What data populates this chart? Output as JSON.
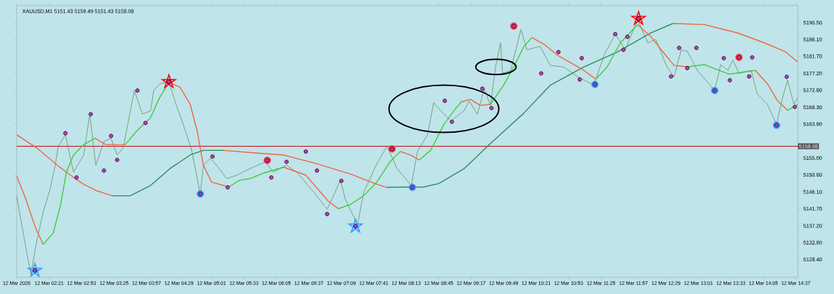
{
  "chart_data": {
    "type": "line",
    "title": "XAUUSD,M1  5151.43 5159.49 5151.43 5158.08",
    "xlim": [
      "2026-03-12T01:49",
      "2026-03-12T14:39"
    ],
    "ylim": [
      5123.7,
      5195.0
    ],
    "xticks": [
      {
        "value": "2026-03-12T01:49",
        "label": "12 Mar 2026"
      },
      {
        "value": "2026-03-12T02:21",
        "label": "12 Mar 02:21"
      },
      {
        "value": "2026-03-12T02:53",
        "label": "12 Mar 02:53"
      },
      {
        "value": "2026-03-12T03:25",
        "label": "12 Mar 03:25"
      },
      {
        "value": "2026-03-12T03:57",
        "label": "12 Mar 03:57"
      },
      {
        "value": "2026-03-12T04:29",
        "label": "12 Mar 04:29"
      },
      {
        "value": "2026-03-12T05:01",
        "label": "12 Mar 05:01"
      },
      {
        "value": "2026-03-12T05:33",
        "label": "12 Mar 05:33"
      },
      {
        "value": "2026-03-12T06:05",
        "label": "12 Mar 06:05"
      },
      {
        "value": "2026-03-12T06:37",
        "label": "12 Mar 06:37"
      },
      {
        "value": "2026-03-12T07:09",
        "label": "12 Mar 07:09"
      },
      {
        "value": "2026-03-12T07:41",
        "label": "12 Mar 07:41"
      },
      {
        "value": "2026-03-12T08:13",
        "label": "12 Mar 08:13"
      },
      {
        "value": "2026-03-12T08:45",
        "label": "12 Mar 08:45"
      },
      {
        "value": "2026-03-12T09:17",
        "label": "12 Mar 09:17"
      },
      {
        "value": "2026-03-12T09:49",
        "label": "12 Mar 09:49"
      },
      {
        "value": "2026-03-12T10:21",
        "label": "12 Mar 10:21"
      },
      {
        "value": "2026-03-12T10:53",
        "label": "12 Mar 10:53"
      },
      {
        "value": "2026-03-12T11:25",
        "label": "12 Mar 11:25"
      },
      {
        "value": "2026-03-12T11:57",
        "label": "12 Mar 11:57"
      },
      {
        "value": "2026-03-12T12:29",
        "label": "12 Mar 12:29"
      },
      {
        "value": "2026-03-12T13:01",
        "label": "12 Mar 13:01"
      },
      {
        "value": "2026-03-12T13:33",
        "label": "12 Mar 13:33"
      },
      {
        "value": "2026-03-12T14:05",
        "label": "12 Mar 14:05"
      },
      {
        "value": "2026-03-12T14:37",
        "label": "12 Mar 14:37"
      }
    ],
    "yticks": [
      {
        "value": 5128.4,
        "label": "5128.40"
      },
      {
        "value": 5132.8,
        "label": "5132.80"
      },
      {
        "value": 5137.2,
        "label": "5137.20"
      },
      {
        "value": 5141.7,
        "label": "5141.70"
      },
      {
        "value": 5146.1,
        "label": "5146.10"
      },
      {
        "value": 5150.6,
        "label": "5150.60"
      },
      {
        "value": 5155.0,
        "label": "5155.00"
      },
      {
        "value": 5163.9,
        "label": "5163.90"
      },
      {
        "value": 5168.3,
        "label": "5168.30"
      },
      {
        "value": 5172.8,
        "label": "5172.80"
      },
      {
        "value": 5177.2,
        "label": "5177.20"
      },
      {
        "value": 5181.7,
        "label": "5181.70"
      },
      {
        "value": 5186.1,
        "label": "5186.10"
      },
      {
        "value": 5190.5,
        "label": "5190.50"
      }
    ],
    "ref_lines": [
      {
        "axis": "y",
        "value": 5158.08,
        "label": "5158.08",
        "color": "#c80000"
      }
    ],
    "series": [
      {
        "color": "#5f8f5f",
        "x": [
          "2026-03-12T01:49",
          "2026-03-12T01:59",
          "2026-03-12T02:03",
          "2026-03-12T02:09",
          "2026-03-12T02:15",
          "2026-03-12T02:22",
          "2026-03-12T02:27",
          "2026-03-12T02:30",
          "2026-03-12T02:37",
          "2026-03-12T02:45",
          "2026-03-12T02:55",
          "2026-03-12T03:01",
          "2026-03-12T03:07",
          "2026-03-12T03:15",
          "2026-03-12T03:22",
          "2026-03-12T03:28",
          "2026-03-12T03:34",
          "2026-03-12T03:41",
          "2026-03-12T03:45",
          "2026-03-12T03:53",
          "2026-03-12T04:01",
          "2026-03-12T04:04",
          "2026-03-12T04:10",
          "2026-03-12T04:19",
          "2026-03-12T04:26",
          "2026-03-12T04:32",
          "2026-03-12T04:41",
          "2026-03-12T04:50",
          "2026-03-12T04:53",
          "2026-03-12T05:00",
          "2026-03-12T05:06",
          "2026-03-12T05:16",
          "2026-03-12T05:26",
          "2026-03-12T05:39",
          "2026-03-12T05:54",
          "2026-03-12T06:02",
          "2026-03-12T06:15",
          "2026-03-12T06:25",
          "2026-03-12T06:42",
          "2026-03-12T06:55",
          "2026-03-12T07:02",
          "2026-03-12T07:08",
          "2026-03-12T07:13",
          "2026-03-12T07:25",
          "2026-03-12T07:31",
          "2026-03-12T07:44",
          "2026-03-12T07:54",
          "2026-03-12T08:04",
          "2026-03-12T08:18",
          "2026-03-12T08:24",
          "2026-03-12T08:34",
          "2026-03-12T08:40",
          "2026-03-12T08:47",
          "2026-03-12T08:57",
          "2026-03-12T09:10",
          "2026-03-12T09:15",
          "2026-03-12T09:23",
          "2026-03-12T09:30",
          "2026-03-12T09:36",
          "2026-03-12T09:41",
          "2026-03-12T09:46",
          "2026-03-12T09:48",
          "2026-03-12T09:56",
          "2026-03-12T10:06",
          "2026-03-12T10:12",
          "2026-03-12T10:25",
          "2026-03-12T10:35",
          "2026-03-12T10:48",
          "2026-03-12T11:02",
          "2026-03-12T11:18",
          "2026-03-12T11:28",
          "2026-03-12T11:39",
          "2026-03-12T11:49",
          "2026-03-12T12:01",
          "2026-03-12T12:11",
          "2026-03-12T12:19",
          "2026-03-12T12:30",
          "2026-03-12T12:37",
          "2026-03-12T12:44",
          "2026-03-12T12:50",
          "2026-03-12T13:00",
          "2026-03-12T13:17",
          "2026-03-12T13:23",
          "2026-03-12T13:30",
          "2026-03-12T13:35",
          "2026-03-12T13:41",
          "2026-03-12T13:53",
          "2026-03-12T13:59",
          "2026-03-12T14:09",
          "2026-03-12T14:18",
          "2026-03-12T14:24",
          "2026-03-12T14:29",
          "2026-03-12T14:35",
          "2026-03-12T14:39"
        ],
        "values": [
          5145.1,
          5130.0,
          5124.6,
          5133.5,
          5140.7,
          5146.9,
          5153.1,
          5158.1,
          5161.1,
          5151.3,
          5155.8,
          5166.5,
          5153.1,
          5159.3,
          5160.2,
          5155.8,
          5157.6,
          5167.4,
          5172.7,
          5166.5,
          5167.4,
          5172.7,
          5174.5,
          5175.0,
          5169.1,
          5164.7,
          5157.6,
          5145.5,
          5153.1,
          5154.9,
          5153.1,
          5149.6,
          5150.5,
          5152.2,
          5154.0,
          5151.3,
          5153.1,
          5151.3,
          5146.0,
          5141.6,
          5145.5,
          5149.2,
          5144.2,
          5137.5,
          5146.0,
          5153.5,
          5158.1,
          5152.2,
          5147.8,
          5156.7,
          5161.1,
          5169.5,
          5167.4,
          5164.7,
          5167.4,
          5170.0,
          5166.5,
          5173.1,
          5168.8,
          5178.9,
          5185.2,
          5177.2,
          5178.0,
          5188.7,
          5183.4,
          5184.3,
          5179.3,
          5178.9,
          5176.3,
          5174.1,
          5182.0,
          5187.5,
          5183.4,
          5191.4,
          5185.2,
          5186.1,
          5178.9,
          5176.3,
          5183.4,
          5183.0,
          5178.0,
          5172.7,
          5179.5,
          5178.0,
          5180.7,
          5177.2,
          5178.0,
          5171.8,
          5169.1,
          5163.8,
          5170.9,
          5175.4,
          5169.1,
          5170.9
        ]
      },
      {
        "color": "#f0643c",
        "x": [
          "2026-03-12T01:49",
          "2026-03-12T02:09",
          "2026-03-12T02:29",
          "2026-03-12T02:42",
          "2026-03-12T02:55",
          "2026-03-12T03:08",
          "2026-03-12T03:23"
        ],
        "values": [
          5161.1,
          5157.6,
          5153.1,
          5150.5,
          5148.1,
          5146.4,
          5145.1
        ]
      },
      {
        "color": "#2e8b57",
        "x": [
          "2026-03-12T03:23",
          "2026-03-12T03:41",
          "2026-03-12T04:01",
          "2026-03-12T04:20",
          "2026-03-12T04:40",
          "2026-03-12T04:53",
          "2026-03-12T05:13"
        ],
        "values": [
          5145.1,
          5145.1,
          5147.8,
          5152.2,
          5155.8,
          5157.0,
          5157.0
        ]
      },
      {
        "color": "#f0643c",
        "x": [
          "2026-03-12T05:13",
          "2026-03-12T05:46",
          "2026-03-12T06:12",
          "2026-03-12T06:45",
          "2026-03-12T07:18",
          "2026-03-12T07:44",
          "2026-03-12T07:54"
        ],
        "values": [
          5157.0,
          5156.3,
          5155.8,
          5153.5,
          5150.8,
          5148.1,
          5147.3
        ]
      },
      {
        "color": "#2e8b57",
        "x": [
          "2026-03-12T07:54",
          "2026-03-12T08:30",
          "2026-03-12T08:45",
          "2026-03-12T09:10",
          "2026-03-12T09:36",
          "2026-03-12T10:09",
          "2026-03-12T10:35",
          "2026-03-12T11:08",
          "2026-03-12T11:41",
          "2026-03-12T12:14",
          "2026-03-12T12:36"
        ],
        "values": [
          5147.3,
          5147.4,
          5148.3,
          5152.2,
          5158.8,
          5166.8,
          5174.1,
          5178.9,
          5182.8,
          5187.8,
          5190.3
        ]
      },
      {
        "color": "#f0643c",
        "x": [
          "2026-03-12T12:36",
          "2026-03-12T13:07",
          "2026-03-12T13:40",
          "2026-03-12T14:06",
          "2026-03-12T14:26",
          "2026-03-12T14:39"
        ],
        "values": [
          5190.3,
          5190.0,
          5187.8,
          5185.2,
          5183.0,
          5180.2
        ]
      },
      {
        "color": "#f0643c",
        "x": [
          "2026-03-12T01:49",
          "2026-03-12T01:58",
          "2026-03-12T02:07",
          "2026-03-12T02:15"
        ],
        "values": [
          5150.3,
          5144.2,
          5137.1,
          5132.3
        ]
      },
      {
        "color": "#3ccc3c",
        "x": [
          "2026-03-12T02:15",
          "2026-03-12T02:25",
          "2026-03-12T02:32",
          "2026-03-12T02:38",
          "2026-03-12T02:45",
          "2026-03-12T02:55",
          "2026-03-12T03:06"
        ],
        "values": [
          5132.3,
          5135.3,
          5142.4,
          5151.3,
          5155.8,
          5158.5,
          5160.2
        ]
      },
      {
        "color": "#f0643c",
        "x": [
          "2026-03-12T03:06",
          "2026-03-12T03:17",
          "2026-03-12T03:36"
        ],
        "values": [
          5160.2,
          5158.5,
          5158.5
        ]
      },
      {
        "color": "#3ccc3c",
        "x": [
          "2026-03-12T03:36",
          "2026-03-12T03:47",
          "2026-03-12T04:01",
          "2026-03-12T04:10",
          "2026-03-12T04:19"
        ],
        "values": [
          5158.5,
          5162.0,
          5165.6,
          5170.9,
          5174.8
        ]
      },
      {
        "color": "#f0643c",
        "x": [
          "2026-03-12T04:19",
          "2026-03-12T04:30",
          "2026-03-12T04:40",
          "2026-03-12T04:47",
          "2026-03-12T04:53",
          "2026-03-12T05:01",
          "2026-03-12T05:18"
        ],
        "values": [
          5174.8,
          5173.6,
          5169.1,
          5162.0,
          5153.1,
          5148.7,
          5147.4
        ]
      },
      {
        "color": "#3ccc3c",
        "x": [
          "2026-03-12T05:18",
          "2026-03-12T05:29",
          "2026-03-12T05:39",
          "2026-03-12T05:52",
          "2026-03-12T06:12"
        ],
        "values": [
          5147.4,
          5149.2,
          5149.6,
          5151.0,
          5152.6
        ]
      },
      {
        "color": "#f0643c",
        "x": [
          "2026-03-12T06:12",
          "2026-03-12T06:34",
          "2026-03-12T06:56",
          "2026-03-12T07:06"
        ],
        "values": [
          5152.6,
          5150.5,
          5143.7,
          5141.7
        ]
      },
      {
        "color": "#3ccc3c",
        "x": [
          "2026-03-12T07:06",
          "2026-03-12T07:18",
          "2026-03-12T07:31",
          "2026-03-12T07:44",
          "2026-03-12T07:57",
          "2026-03-12T08:07"
        ],
        "values": [
          5141.7,
          5142.8,
          5145.1,
          5148.7,
          5154.0,
          5156.7
        ]
      },
      {
        "color": "#f0643c",
        "x": [
          "2026-03-12T08:07",
          "2026-03-12T08:17",
          "2026-03-12T08:26"
        ],
        "values": [
          5156.7,
          5155.8,
          5154.5
        ]
      },
      {
        "color": "#3ccc3c",
        "x": [
          "2026-03-12T08:26",
          "2026-03-12T08:37",
          "2026-03-12T08:50",
          "2026-03-12T09:00",
          "2026-03-12T09:07"
        ],
        "values": [
          5154.5,
          5157.0,
          5163.8,
          5167.4,
          5169.7
        ]
      },
      {
        "color": "#f0643c",
        "x": [
          "2026-03-12T09:07",
          "2026-03-12T09:16",
          "2026-03-12T09:26",
          "2026-03-12T09:36"
        ],
        "values": [
          5169.7,
          5170.4,
          5168.8,
          5169.1
        ]
      },
      {
        "color": "#3ccc3c",
        "x": [
          "2026-03-12T09:36",
          "2026-03-12T09:49",
          "2026-03-12T09:59",
          "2026-03-12T10:09",
          "2026-03-12T10:17"
        ],
        "values": [
          5169.1,
          5174.1,
          5178.9,
          5184.3,
          5186.6
        ]
      },
      {
        "color": "#f0643c",
        "x": [
          "2026-03-12T10:17",
          "2026-03-12T10:29",
          "2026-03-12T10:42",
          "2026-03-12T11:08",
          "2026-03-12T11:20"
        ],
        "values": [
          5186.6,
          5184.8,
          5182.0,
          5178.0,
          5175.7
        ]
      },
      {
        "color": "#3ccc3c",
        "x": [
          "2026-03-12T11:20",
          "2026-03-12T11:31",
          "2026-03-12T11:44",
          "2026-03-12T12:01"
        ],
        "values": [
          5175.7,
          5178.9,
          5185.2,
          5190.0
        ]
      },
      {
        "color": "#f0643c",
        "x": [
          "2026-03-12T12:01",
          "2026-03-12T12:14",
          "2026-03-12T12:27",
          "2026-03-12T12:37",
          "2026-03-12T12:50"
        ],
        "values": [
          5190.0,
          5186.9,
          5182.5,
          5179.3,
          5178.9
        ]
      },
      {
        "color": "#3ccc3c",
        "x": [
          "2026-03-12T12:50",
          "2026-03-12T13:07",
          "2026-03-12T13:31",
          "2026-03-12T13:57"
        ],
        "values": [
          5178.9,
          5179.5,
          5177.0,
          5178.0
        ]
      },
      {
        "color": "#f0643c",
        "x": [
          "2026-03-12T13:57",
          "2026-03-12T14:09",
          "2026-03-12T14:19",
          "2026-03-12T14:29"
        ],
        "values": [
          5178.0,
          5174.5,
          5170.0,
          5167.5
        ]
      },
      {
        "color": "#3ccc3c",
        "x": [
          "2026-03-12T14:29",
          "2026-03-12T14:39"
        ],
        "values": [
          5167.5,
          5169.1
        ]
      },
      {
        "type": "scatter",
        "marker": "circle",
        "color": "#3399ff",
        "x": [
          "2026-03-12T04:50",
          "2026-03-12T08:19",
          "2026-03-12T11:19",
          "2026-03-12T13:17",
          "2026-03-12T14:18"
        ],
        "values": [
          5145.6,
          5147.3,
          5174.3,
          5172.7,
          5163.6
        ]
      },
      {
        "type": "scatter",
        "marker": "circle",
        "color": "#ff3333",
        "x": [
          "2026-03-12T05:56",
          "2026-03-12T07:59",
          "2026-03-12T09:59",
          "2026-03-12T13:41"
        ],
        "values": [
          5154.4,
          5157.4,
          5189.6,
          5181.4
        ]
      },
      {
        "type": "scatter",
        "marker": "star",
        "color": "#ff0000",
        "x": [
          "2026-03-12T04:19",
          "2026-03-12T12:02"
        ],
        "values": [
          5175.0,
          5191.6
        ]
      },
      {
        "type": "scatter",
        "marker": "star",
        "color": "#3399ff",
        "x": [
          "2026-03-12T02:07",
          "2026-03-12T07:23"
        ],
        "values": [
          5125.5,
          5137.1
        ]
      },
      {
        "type": "scatter",
        "marker": "circle",
        "color": "#cc33cc",
        "x": [
          "2026-03-12T02:07",
          "2026-03-12T02:37",
          "2026-03-12T02:48",
          "2026-03-12T03:02",
          "2026-03-12T03:15",
          "2026-03-12T03:22",
          "2026-03-12T03:28",
          "2026-03-12T03:48",
          "2026-03-12T03:56",
          "2026-03-12T04:19",
          "2026-03-12T04:50",
          "2026-03-12T05:02",
          "2026-03-12T05:17",
          "2026-03-12T05:56",
          "2026-03-12T06:00",
          "2026-03-12T06:15",
          "2026-03-12T06:34",
          "2026-03-12T06:45",
          "2026-03-12T06:55",
          "2026-03-12T07:09",
          "2026-03-12T07:23",
          "2026-03-12T07:59",
          "2026-03-12T08:19",
          "2026-03-12T08:51",
          "2026-03-12T08:58",
          "2026-03-12T09:28",
          "2026-03-12T09:37",
          "2026-03-12T09:59",
          "2026-03-12T10:26",
          "2026-03-12T10:43",
          "2026-03-12T11:04",
          "2026-03-12T11:06",
          "2026-03-12T11:19",
          "2026-03-12T11:39",
          "2026-03-12T11:47",
          "2026-03-12T11:51",
          "2026-03-12T12:02",
          "2026-03-12T12:34",
          "2026-03-12T12:42",
          "2026-03-12T12:50",
          "2026-03-12T12:59",
          "2026-03-12T13:17",
          "2026-03-12T13:26",
          "2026-03-12T13:32",
          "2026-03-12T13:41",
          "2026-03-12T13:51",
          "2026-03-12T13:54",
          "2026-03-12T14:18",
          "2026-03-12T14:28",
          "2026-03-12T14:36"
        ],
        "values": [
          5125.5,
          5161.5,
          5149.9,
          5166.5,
          5151.7,
          5160.8,
          5154.5,
          5172.7,
          5164.2,
          5175.0,
          5145.6,
          5155.4,
          5147.3,
          5154.4,
          5149.9,
          5154.0,
          5156.7,
          5151.7,
          5140.3,
          5149.0,
          5137.1,
          5157.4,
          5147.3,
          5170.0,
          5164.5,
          5173.2,
          5168.1,
          5189.6,
          5177.2,
          5182.8,
          5175.6,
          5181.2,
          5174.3,
          5187.5,
          5183.4,
          5186.8,
          5191.6,
          5176.4,
          5183.9,
          5178.6,
          5183.9,
          5172.7,
          5181.2,
          5175.4,
          5181.4,
          5176.4,
          5181.4,
          5163.6,
          5176.3,
          5168.4
        ]
      }
    ]
  }
}
